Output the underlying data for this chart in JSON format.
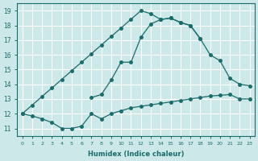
{
  "xlabel": "Humidex (Indice chaleur)",
  "background_color": "#cce8e8",
  "grid_color": "#ffffff",
  "line_color": "#1a6b6b",
  "xlim": [
    -0.5,
    23.5
  ],
  "ylim": [
    10.5,
    19.5
  ],
  "xticks": [
    0,
    1,
    2,
    3,
    4,
    5,
    6,
    7,
    8,
    9,
    10,
    11,
    12,
    13,
    14,
    15,
    16,
    17,
    18,
    19,
    20,
    21,
    22,
    23
  ],
  "yticks": [
    11,
    12,
    13,
    14,
    15,
    16,
    17,
    18,
    19
  ],
  "series": [
    {
      "x": [
        0,
        1,
        2,
        3,
        4,
        5,
        6,
        7,
        8,
        9,
        10,
        11,
        12,
        13,
        14,
        15,
        16,
        17,
        18,
        19,
        20,
        21,
        22,
        23
      ],
      "y": [
        12.0,
        11.85,
        11.65,
        11.4,
        11.0,
        11.0,
        11.15,
        12.0,
        11.65,
        12.0,
        12.2,
        12.4,
        12.5,
        12.6,
        12.7,
        12.8,
        12.9,
        13.0,
        13.1,
        13.2,
        13.25,
        13.3,
        13.0,
        13.0
      ]
    },
    {
      "x": [
        0,
        1,
        2,
        3,
        4,
        5,
        6,
        7,
        8,
        9,
        10,
        11,
        12,
        13,
        14,
        15,
        16,
        17,
        18
      ],
      "y": [
        12.0,
        12.58,
        13.17,
        13.75,
        14.33,
        14.92,
        15.5,
        16.08,
        16.67,
        17.25,
        17.83,
        18.42,
        19.0,
        18.8,
        18.4,
        18.5,
        18.2,
        18.0,
        17.1
      ]
    },
    {
      "x": [
        7,
        8,
        9,
        10,
        11,
        12,
        13,
        14,
        15,
        16,
        17,
        18,
        19,
        20,
        21,
        22,
        23
      ],
      "y": [
        13.1,
        13.3,
        14.3,
        15.5,
        15.5,
        17.2,
        18.1,
        18.4,
        18.5,
        18.2,
        18.0,
        17.1,
        16.0,
        15.6,
        14.4,
        14.0,
        13.9
      ]
    }
  ]
}
